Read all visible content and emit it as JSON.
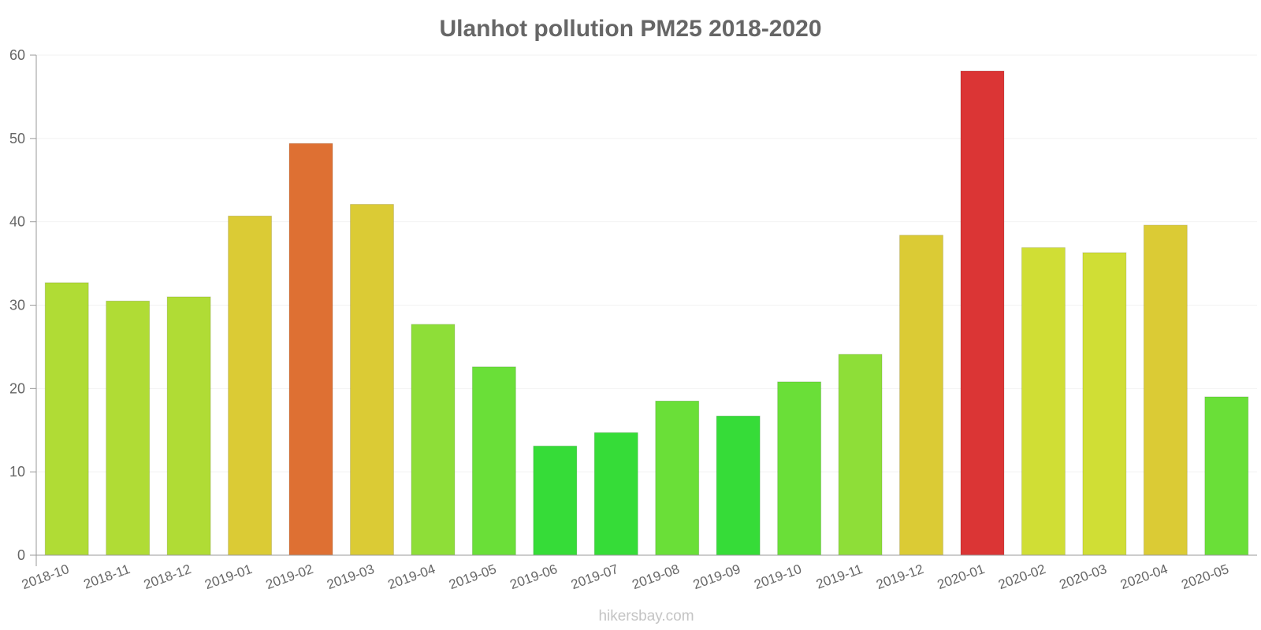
{
  "chart_data": {
    "type": "bar",
    "title": "Ulanhot pollution PM25 2018-2020",
    "xlabel": "",
    "ylabel": "",
    "ylim": [
      0,
      60
    ],
    "yticks": [
      0,
      10,
      20,
      30,
      40,
      50,
      60
    ],
    "grid": true,
    "categories": [
      "2018-10",
      "2018-11",
      "2018-12",
      "2019-01",
      "2019-02",
      "2019-03",
      "2019-04",
      "2019-05",
      "2019-06",
      "2019-07",
      "2019-08",
      "2019-09",
      "2019-10",
      "2019-11",
      "2019-12",
      "2020-01",
      "2020-02",
      "2020-03",
      "2020-04",
      "2020-05"
    ],
    "values": [
      32.7,
      30.5,
      31.0,
      40.7,
      49.4,
      42.1,
      27.7,
      22.6,
      13.1,
      14.7,
      18.5,
      16.7,
      20.8,
      24.1,
      38.4,
      58.1,
      36.9,
      36.3,
      39.6,
      19.0
    ],
    "colors": [
      "#b0dc35",
      "#b0dc35",
      "#b0dc35",
      "#dbcb35",
      "#de7033",
      "#dbcb35",
      "#8ede38",
      "#6adf38",
      "#36dc38",
      "#36dc38",
      "#6adf38",
      "#36dc38",
      "#6adf38",
      "#8ede38",
      "#dbcb35",
      "#db3535",
      "#d0de35",
      "#d0de35",
      "#dbcb35",
      "#6adf38"
    ]
  },
  "watermark": "hikersbay.com"
}
